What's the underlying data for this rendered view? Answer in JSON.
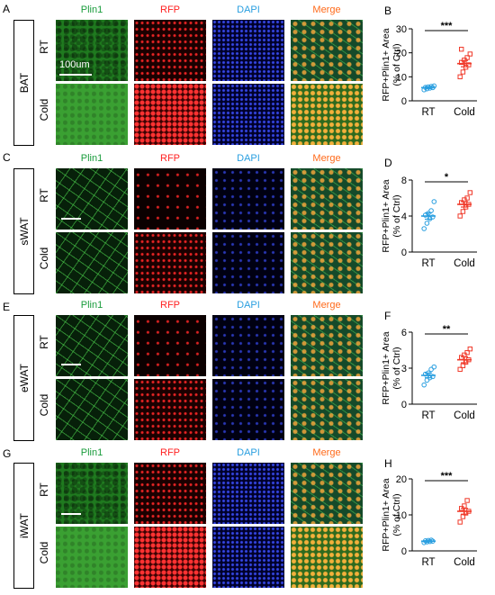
{
  "panel_letters": {
    "A": "A",
    "B": "B",
    "C": "C",
    "D": "D",
    "E": "E",
    "F": "F",
    "G": "G",
    "H": "H"
  },
  "column_labels": {
    "plin1": "Plin1",
    "rfp": "RFP",
    "dapi": "DAPI",
    "merge": "Merge"
  },
  "column_colors": {
    "plin1": "#1a9c3c",
    "rfp": "#ff2020",
    "dapi": "#2a9fe0",
    "merge": "#ff6a1a"
  },
  "conditions": {
    "rt": "RT",
    "cold": "Cold"
  },
  "tissues": {
    "bat": "BAT",
    "swat": "sWAT",
    "ewat": "eWAT",
    "iwat": "iWAT"
  },
  "scale_bar_label": "100um",
  "chart_data": [
    {
      "type": "scatter",
      "panel": "B",
      "categories": [
        "RT",
        "Cold"
      ],
      "ylabel": "RFP+Plin1+ Area\n(% of Ctrl)",
      "ylim": [
        0,
        30
      ],
      "yticks": [
        0,
        10,
        20,
        30
      ],
      "significance": "***",
      "series": [
        {
          "name": "RT",
          "marker": "circle",
          "color": "#2a9fe0",
          "mean": 5.5,
          "sem": 0.4,
          "values": [
            4.6,
            5.0,
            5.3,
            5.5,
            5.6,
            5.8,
            6.0,
            6.2
          ]
        },
        {
          "name": "Cold",
          "marker": "square",
          "color": "#f03a2a",
          "mean": 15.5,
          "sem": 1.3,
          "values": [
            10,
            12,
            14,
            15,
            16,
            17,
            18,
            19.5,
            21.5
          ]
        }
      ]
    },
    {
      "type": "scatter",
      "panel": "D",
      "categories": [
        "RT",
        "Cold"
      ],
      "ylabel": "RFP+Plin1+ Area\n(% of Ctrl)",
      "ylim": [
        0,
        8
      ],
      "yticks": [
        0,
        4,
        8
      ],
      "significance": "*",
      "series": [
        {
          "name": "RT",
          "marker": "circle",
          "color": "#2a9fe0",
          "mean": 4.0,
          "sem": 0.35,
          "values": [
            2.6,
            3.2,
            3.7,
            3.9,
            4.1,
            4.3,
            4.6,
            5.6
          ]
        },
        {
          "name": "Cold",
          "marker": "square",
          "color": "#f03a2a",
          "mean": 5.3,
          "sem": 0.3,
          "values": [
            4.0,
            4.5,
            5.0,
            5.3,
            5.5,
            5.8,
            6.0,
            6.6
          ]
        }
      ]
    },
    {
      "type": "scatter",
      "panel": "F",
      "categories": [
        "RT",
        "Cold"
      ],
      "ylabel": "RFP+Plin1+ Area\n(% of Ctrl)",
      "ylim": [
        0,
        6
      ],
      "yticks": [
        0,
        3,
        6
      ],
      "significance": "**",
      "series": [
        {
          "name": "RT",
          "marker": "circle",
          "color": "#2a9fe0",
          "mean": 2.4,
          "sem": 0.2,
          "values": [
            1.6,
            2.0,
            2.2,
            2.3,
            2.5,
            2.6,
            2.9,
            3.1
          ]
        },
        {
          "name": "Cold",
          "marker": "square",
          "color": "#f03a2a",
          "mean": 3.7,
          "sem": 0.25,
          "values": [
            2.9,
            3.2,
            3.5,
            3.7,
            3.9,
            4.1,
            4.3,
            4.6
          ]
        }
      ]
    },
    {
      "type": "scatter",
      "panel": "H",
      "categories": [
        "RT",
        "Cold"
      ],
      "ylabel": "RFP+Plin1+ Area\n(% of Ctrl)",
      "ylim": [
        0,
        20
      ],
      "yticks": [
        0,
        10,
        20
      ],
      "significance": "***",
      "series": [
        {
          "name": "RT",
          "marker": "circle",
          "color": "#2a9fe0",
          "mean": 2.7,
          "sem": 0.15,
          "values": [
            2.3,
            2.5,
            2.6,
            2.7,
            2.8,
            2.9,
            3.0
          ]
        },
        {
          "name": "Cold",
          "marker": "square",
          "color": "#f03a2a",
          "mean": 11.0,
          "sem": 0.8,
          "values": [
            8.0,
            9.5,
            10.5,
            11.0,
            11.8,
            12.5,
            14.0
          ]
        }
      ]
    }
  ]
}
